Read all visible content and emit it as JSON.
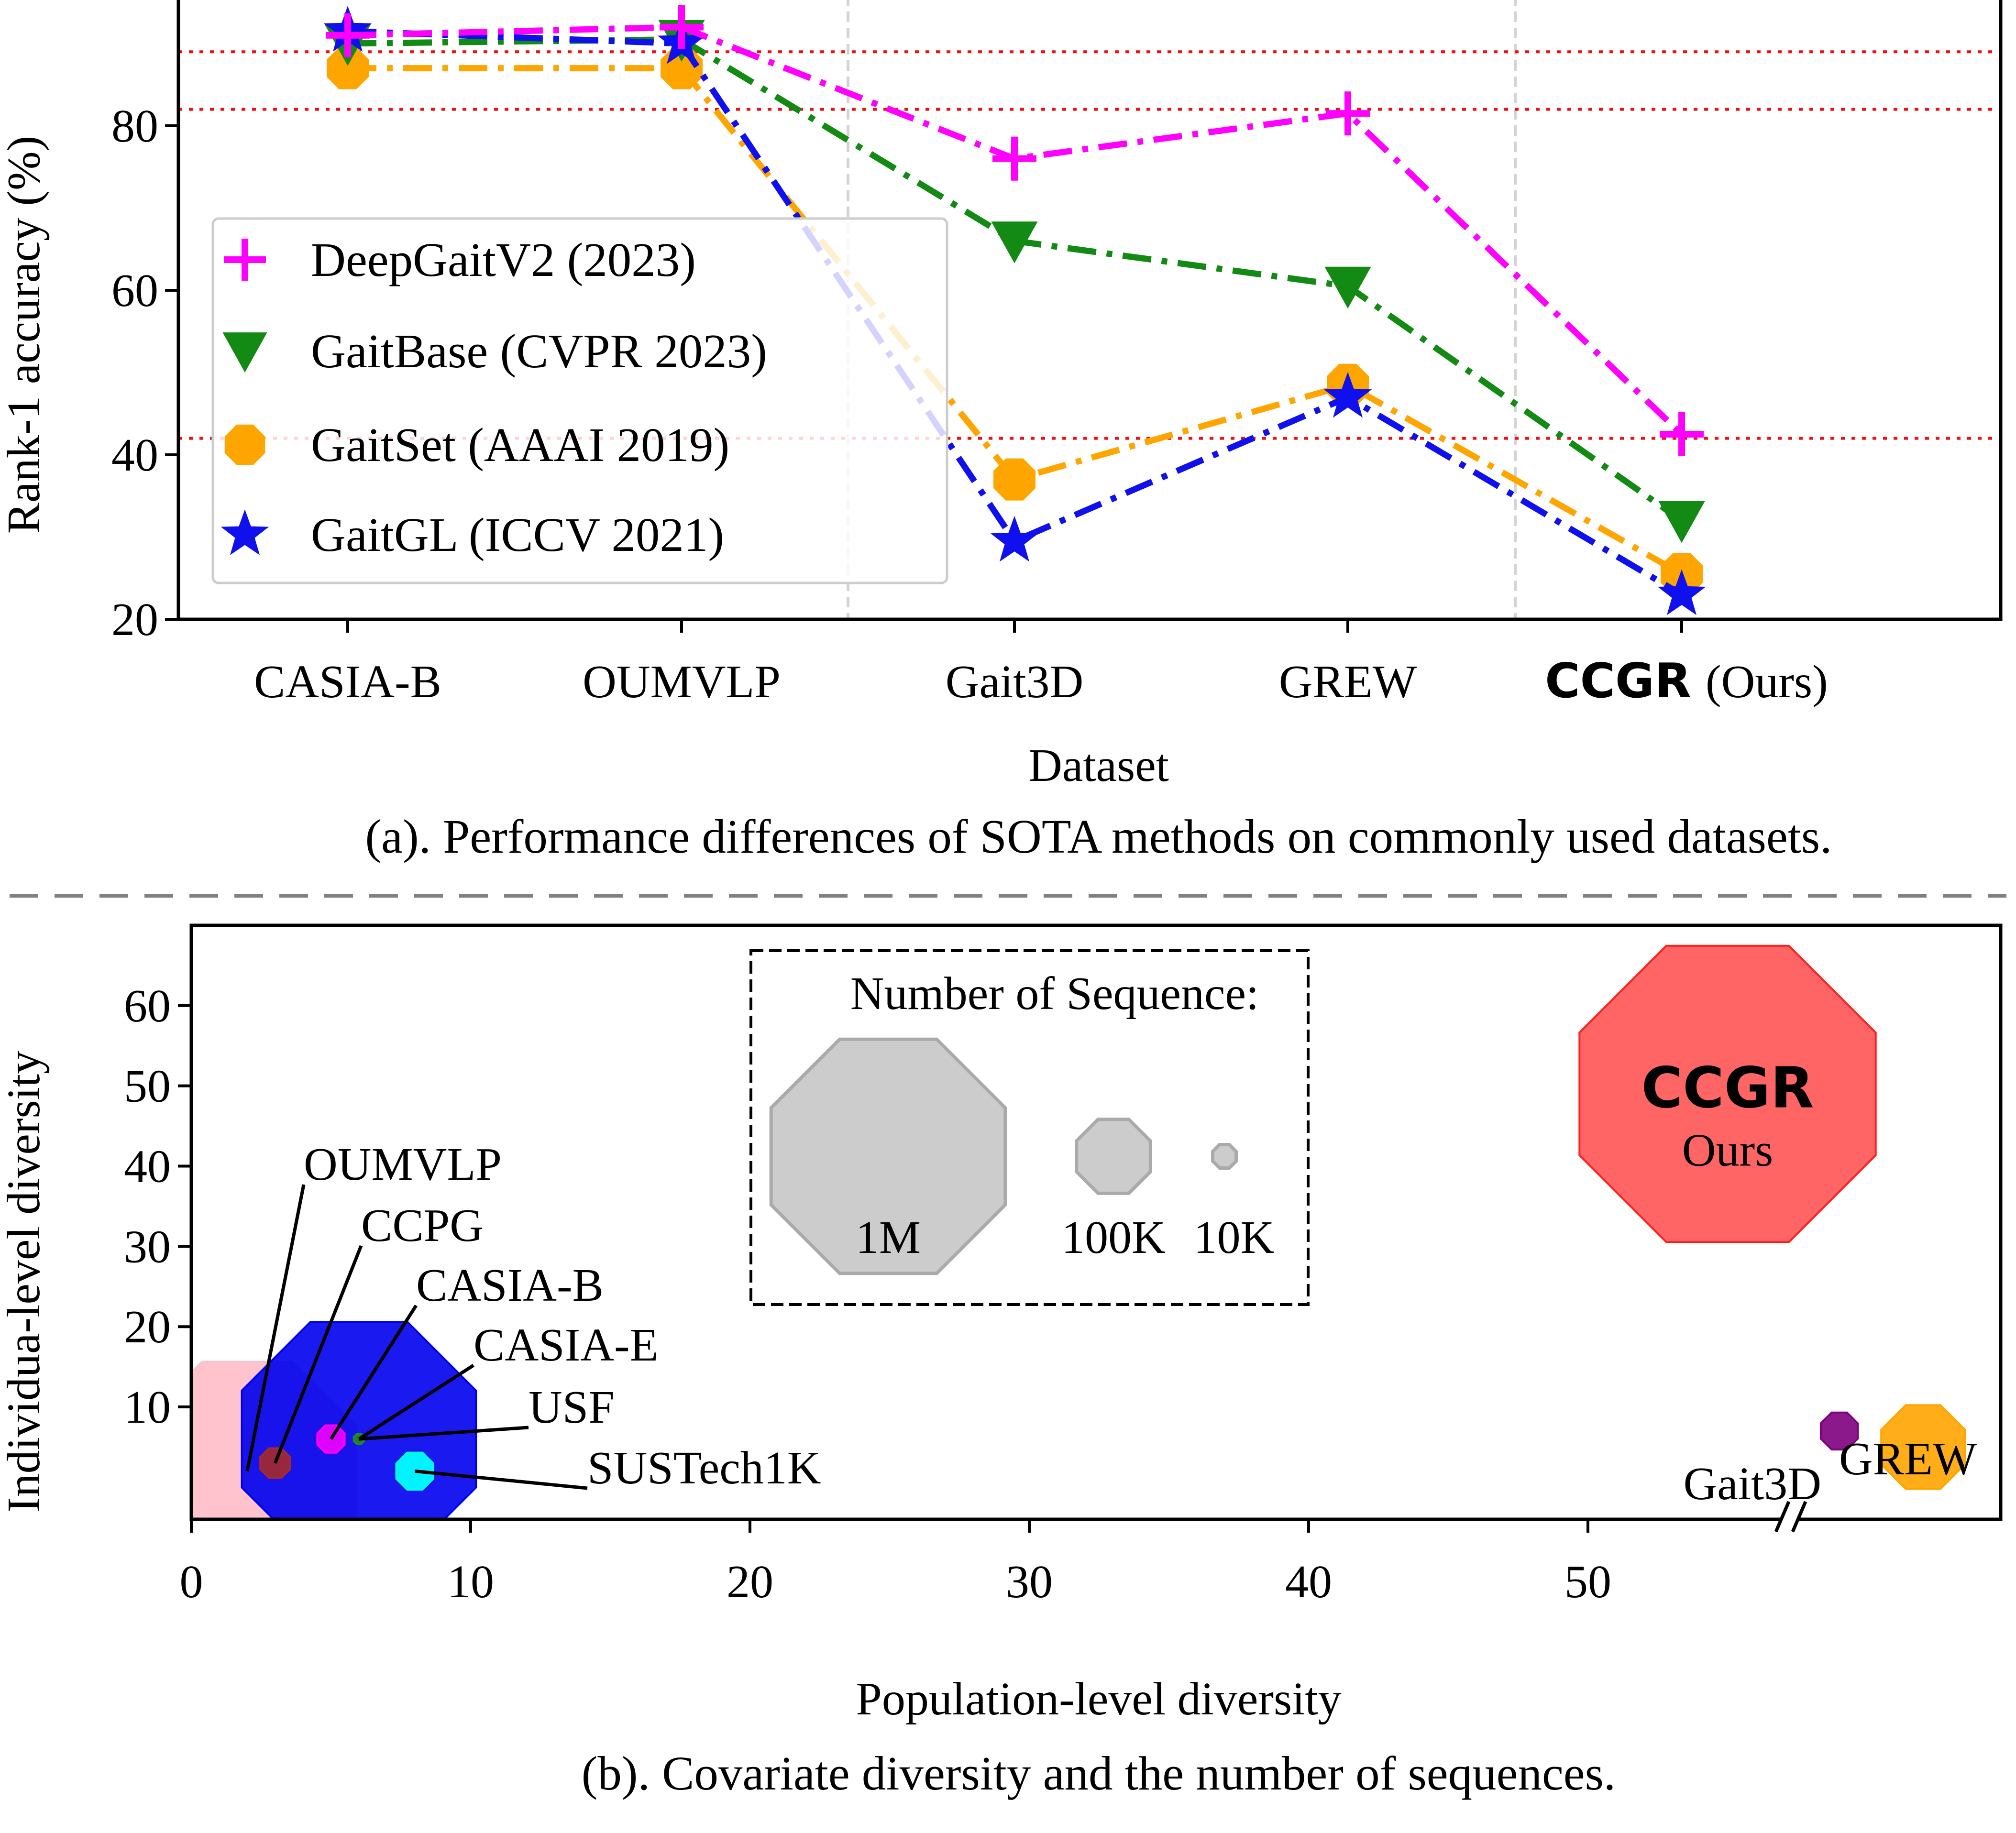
{
  "chart_data": [
    {
      "type": "line",
      "caption": "(a). Performance differences of SOTA methods on commonly used datasets.",
      "xlabel": "Dataset",
      "ylabel": "Rank-1 accuracy (%)",
      "ylim": [
        20,
        94
      ],
      "yticks": [
        20,
        40,
        60,
        80
      ],
      "categories": [
        "CASIA-B",
        "OUMVLP",
        "Gait3D",
        "GREW",
        "CCGR"
      ],
      "last_category_bold": "CCGR",
      "last_category_suffix": "(Ours)",
      "legend_position": "center-left",
      "reference_lines": [
        89,
        82,
        42
      ],
      "series": [
        {
          "name": "DeepGaitV2 (2023)",
          "color": "#ff00ff",
          "marker": "plus",
          "values": [
            91,
            92,
            76,
            81.5,
            42.5
          ]
        },
        {
          "name": "GaitBase (CVPR 2023)",
          "color": "#138a13",
          "marker": "triangle-down",
          "values": [
            90,
            90.5,
            66,
            60.5,
            32
          ]
        },
        {
          "name": "GaitSet (AAAI 2019)",
          "color": "#ffa500",
          "marker": "octagon",
          "values": [
            87,
            87,
            37,
            48.5,
            25.5
          ]
        },
        {
          "name": "GaitGL (ICCV 2021)",
          "color": "#1010ee",
          "marker": "star",
          "values": [
            91.5,
            90,
            29.5,
            47,
            23
          ]
        }
      ]
    },
    {
      "type": "scatter",
      "caption": "(b). Covariate diversity and the number of sequences.",
      "xlabel": "Population-level diversity",
      "ylabel": "Individua-level diversity",
      "xlim": [
        0,
        65
      ],
      "ylim": [
        -4,
        70
      ],
      "xticks": [
        0,
        10,
        20,
        30,
        40,
        50
      ],
      "yticks": [
        10,
        20,
        30,
        40,
        50,
        60
      ],
      "axis_break": "x after 50",
      "size_legend": {
        "title": "Number of Sequence:",
        "entries": [
          {
            "label": "1M",
            "sequences": 1000000
          },
          {
            "label": "100K",
            "sequences": 100000
          },
          {
            "label": "10K",
            "sequences": 10000
          }
        ]
      },
      "points": [
        {
          "name": "OUMVLP",
          "x": 2,
          "y": 2,
          "sequences": 870000,
          "color": "#ffc0cb"
        },
        {
          "name": "CCPG",
          "x": 3,
          "y": 3,
          "sequences": 16000,
          "color": "#a52a2a"
        },
        {
          "name": "CASIA-B",
          "x": 5,
          "y": 6,
          "sequences": 13600,
          "color": "#ff00ff"
        },
        {
          "name": "CASIA-E",
          "x": 6,
          "y": 6,
          "sequences": 1000000,
          "color": "#0000ff"
        },
        {
          "name": "USF",
          "x": 6,
          "y": 6,
          "sequences": 1900,
          "color": "#00aa00"
        },
        {
          "name": "SUSTech1K",
          "x": 8,
          "y": 2,
          "sequences": 25000,
          "color": "#00ffff"
        },
        {
          "name": "Gait3D",
          "x": 59,
          "y": 7,
          "sequences": 25000,
          "color": "#800080"
        },
        {
          "name": "GREW",
          "x": 62,
          "y": 5,
          "sequences": 128000,
          "color": "#ffa500"
        },
        {
          "name": "CCGR",
          "subtitle": "Ours",
          "x": 55,
          "y": 49,
          "sequences": 1600000,
          "color": "#ff4d4d"
        }
      ]
    }
  ]
}
